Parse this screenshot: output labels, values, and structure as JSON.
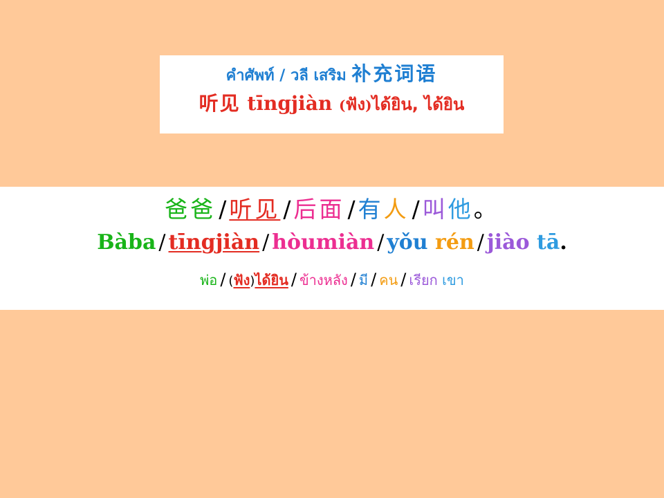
{
  "title": {
    "line1_thai": "คำศัพท์ / วลี เสริม",
    "line1_zh": "补充词语",
    "line2_zh": "听见",
    "line2_pinyin": "tīngjiàn",
    "line2_paren_open": "(",
    "line2_paren_word": "ฟัง",
    "line2_paren_close": ")",
    "line2_thai": "ได้ยิน, ได้ยิน"
  },
  "separator": "/",
  "sentence": {
    "hanzi": [
      {
        "text": "爸爸",
        "color": "#19B419"
      },
      {
        "text": "听见",
        "color": "#E32C22"
      },
      {
        "text": "后面",
        "color": "#EC2E91"
      },
      {
        "text": "有",
        "color": "#1F7FD2"
      },
      {
        "text": "人",
        "color": "#F39C12"
      },
      {
        "text": "叫",
        "color": "#9B59D9"
      },
      {
        "text": "他",
        "color": "#2E9BE0"
      },
      {
        "text": "。",
        "color": "#000000"
      }
    ],
    "pinyin": [
      {
        "text": "Bàba",
        "color": "#19B419"
      },
      {
        "text": "tīngjiàn",
        "color": "#E32C22"
      },
      {
        "text": "hòumiàn",
        "color": "#EC2E91"
      },
      {
        "text": "yǒu",
        "color": "#1F7FD2"
      },
      {
        "text": "rén",
        "color": "#F39C12"
      },
      {
        "text": "jiào",
        "color": "#9B59D9"
      },
      {
        "text": "tā",
        "color": "#2E9BE0"
      },
      {
        "text": ".",
        "color": "#000000"
      }
    ],
    "thai": [
      {
        "text": "พ่อ",
        "color": "#19B419"
      },
      {
        "text": "(",
        "color": "#000000"
      },
      {
        "text": "ฟัง",
        "color": "#E32C22"
      },
      {
        "text": ")",
        "color": "#000000"
      },
      {
        "text": "ได้ยิน",
        "color": "#E32C22"
      },
      {
        "text": "ข้างหลัง",
        "color": "#EC2E91"
      },
      {
        "text": "มี",
        "color": "#1F7FD2"
      },
      {
        "text": "คน",
        "color": "#F39C12"
      },
      {
        "text": "เรียก",
        "color": "#9B59D9"
      },
      {
        "text": "เขา",
        "color": "#2E9BE0"
      }
    ]
  }
}
